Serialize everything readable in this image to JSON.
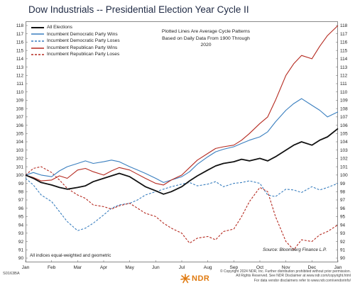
{
  "chart_data": {
    "type": "line",
    "title": "Dow Industrials -- Presidential Election Year Cycle II",
    "annotation_lines": [
      "Plotted Lines Are Average Cycle Patterns",
      "Based on Daily Data From 1900 Through 2020"
    ],
    "x_tick_labels": [
      "Jan",
      "Feb",
      "Mar",
      "Apr",
      "May",
      "Jun",
      "Jul",
      "Aug",
      "Sep",
      "Oct",
      "Nov",
      "Dec",
      "Jan"
    ],
    "ylim": [
      90,
      118
    ],
    "y_ticks": [
      90,
      91,
      92,
      93,
      94,
      95,
      96,
      97,
      98,
      99,
      100,
      101,
      102,
      103,
      104,
      105,
      106,
      107,
      108,
      109,
      110,
      111,
      112,
      113,
      114,
      115,
      116,
      117,
      118
    ],
    "grid": false,
    "legend_position": "top-left",
    "series": [
      {
        "name": "All Elections",
        "color": "#111111",
        "style": "solid",
        "x": [
          0,
          0.3,
          0.6,
          1,
          1.3,
          1.6,
          2,
          2.3,
          2.6,
          3,
          3.3,
          3.6,
          4,
          4.3,
          4.6,
          5,
          5.3,
          5.6,
          6,
          6.3,
          6.6,
          7,
          7.3,
          7.6,
          8,
          8.3,
          8.6,
          9,
          9.3,
          9.6,
          10,
          10.3,
          10.6,
          11,
          11.3,
          11.6,
          12
        ],
        "values": [
          100,
          99.6,
          99.1,
          98.8,
          98.5,
          98.3,
          98.5,
          98.7,
          99.2,
          99.6,
          99.9,
          100.2,
          99.8,
          99.2,
          98.6,
          98.1,
          97.7,
          98.0,
          98.6,
          99.3,
          99.9,
          100.6,
          101.1,
          101.4,
          101.6,
          101.9,
          101.7,
          102.0,
          101.7,
          102.2,
          103.0,
          103.6,
          104.0,
          103.6,
          104.2,
          104.6,
          105.6
        ]
      },
      {
        "name": "Incumbent Democratic Party Wins",
        "color": "#3a7fbf",
        "style": "solid",
        "x": [
          0,
          0.3,
          0.6,
          1,
          1.3,
          1.6,
          2,
          2.3,
          2.6,
          3,
          3.3,
          3.6,
          4,
          4.3,
          4.6,
          5,
          5.3,
          5.6,
          6,
          6.3,
          6.6,
          7,
          7.3,
          7.6,
          8,
          8.3,
          8.6,
          9,
          9.3,
          9.6,
          10,
          10.3,
          10.6,
          11,
          11.3,
          11.6,
          12
        ],
        "values": [
          100,
          100.3,
          100.0,
          99.8,
          100.5,
          101.0,
          101.4,
          101.7,
          101.4,
          101.6,
          101.8,
          101.6,
          101.0,
          100.6,
          100.2,
          99.6,
          99.1,
          99.4,
          99.8,
          100.4,
          101.3,
          102.2,
          102.8,
          103.1,
          103.4,
          103.8,
          104.2,
          104.6,
          105.2,
          106.4,
          107.8,
          108.6,
          109.2,
          108.4,
          107.8,
          107.0,
          107.6
        ]
      },
      {
        "name": "Incumbent Democratic Party Loses",
        "color": "#3a7fbf",
        "style": "dashed",
        "x": [
          0,
          0.3,
          0.6,
          1,
          1.3,
          1.6,
          2,
          2.3,
          2.6,
          3,
          3.3,
          3.6,
          4,
          4.3,
          4.6,
          5,
          5.3,
          5.6,
          6,
          6.3,
          6.6,
          7,
          7.3,
          7.6,
          8,
          8.3,
          8.6,
          9,
          9.3,
          9.6,
          10,
          10.3,
          10.6,
          11,
          11.3,
          11.6,
          12
        ],
        "values": [
          99.6,
          98.8,
          97.6,
          96.8,
          95.6,
          94.4,
          93.3,
          93.6,
          94.2,
          95.2,
          96.0,
          96.4,
          96.6,
          97.0,
          97.6,
          98.0,
          98.3,
          98.6,
          98.9,
          99.1,
          98.7,
          98.9,
          99.2,
          98.6,
          99.0,
          99.1,
          99.3,
          99.0,
          97.6,
          97.4,
          98.3,
          98.2,
          97.9,
          98.6,
          98.2,
          98.5,
          99.0
        ]
      },
      {
        "name": "Incumbent Republican Party Wins",
        "color": "#b52a20",
        "style": "solid",
        "x": [
          0,
          0.3,
          0.6,
          1,
          1.3,
          1.6,
          2,
          2.3,
          2.6,
          3,
          3.3,
          3.6,
          4,
          4.3,
          4.6,
          5,
          5.3,
          5.6,
          6,
          6.3,
          6.6,
          7,
          7.3,
          7.6,
          8,
          8.3,
          8.6,
          9,
          9.3,
          9.6,
          10,
          10.3,
          10.6,
          11,
          11.3,
          11.6,
          12
        ],
        "values": [
          100,
          99.7,
          99.3,
          99.4,
          99.9,
          99.6,
          100.6,
          100.8,
          100.4,
          100.0,
          100.5,
          100.9,
          100.6,
          100.1,
          99.6,
          99.0,
          98.8,
          99.4,
          100.0,
          100.9,
          101.8,
          102.6,
          103.2,
          103.4,
          103.6,
          104.2,
          105.0,
          106.2,
          107.0,
          109.0,
          112.0,
          113.4,
          114.4,
          114.0,
          115.5,
          116.8,
          118.0
        ]
      },
      {
        "name": "Incumbent Republican Party Loses",
        "color": "#b52a20",
        "style": "dashed",
        "x": [
          0,
          0.3,
          0.6,
          1,
          1.3,
          1.6,
          2,
          2.3,
          2.6,
          3,
          3.3,
          3.6,
          4,
          4.3,
          4.6,
          5,
          5.3,
          5.6,
          6,
          6.3,
          6.6,
          7,
          7.3,
          7.6,
          8,
          8.3,
          8.6,
          9,
          9.3,
          9.6,
          10,
          10.3,
          10.6,
          11,
          11.3,
          11.6,
          12
        ],
        "values": [
          100,
          100.8,
          101.0,
          100.3,
          99.4,
          98.4,
          97.6,
          97.2,
          96.4,
          96.2,
          95.9,
          96.3,
          96.6,
          96.0,
          95.4,
          95.0,
          94.2,
          93.6,
          93.0,
          91.8,
          92.4,
          92.6,
          92.2,
          93.2,
          93.5,
          95.0,
          96.8,
          98.5,
          98.0,
          95.0,
          92.0,
          91.0,
          92.2,
          92.0,
          92.8,
          93.2,
          94.0
        ]
      }
    ]
  },
  "notes": {
    "bottom_left": "All indices equal-weighted and geometric",
    "source": "Source:  Bloomberg Finance L.P.",
    "chart_code": "S0163BA"
  },
  "footer": {
    "lines": [
      "© Copyright 2024 NDR, Inc. Further distribution prohibited without prior permission.",
      "All Rights Reserved. See NDR Disclaimer at www.ndr.com/copyright.html",
      "For data vendor disclaimers refer to www.ndr.com/vendorinfo/"
    ],
    "logo_text": "NDR",
    "logo_icon": "ndr-sunburst-logo",
    "logo_color": "#e07a10"
  }
}
